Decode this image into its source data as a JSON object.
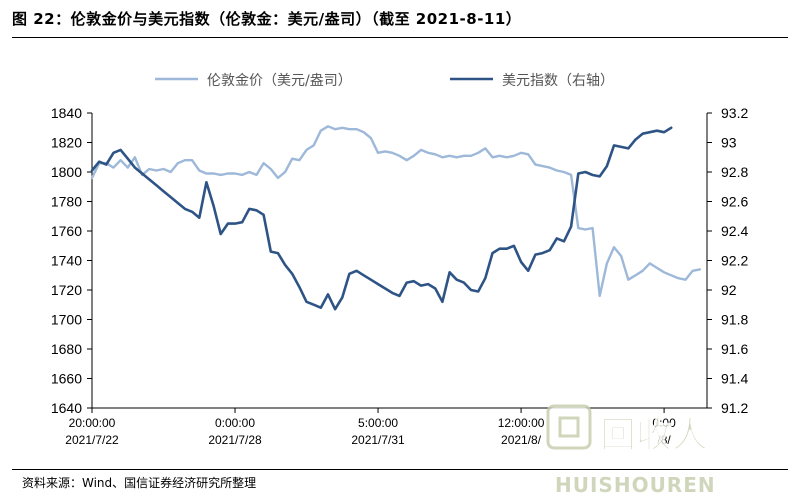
{
  "header": {
    "title": "图 22：伦敦金价与美元指数（伦敦金：美元/盎司）（截至 2021-8-11）"
  },
  "footer": {
    "source": "资料来源：Wind、国信证券经济研究所整理"
  },
  "watermark": {
    "text": "HUISHOUREN",
    "logo_text": "回收人"
  },
  "chart_data": {
    "type": "line",
    "legend": {
      "placement": "top"
    },
    "grid": false,
    "x": {
      "ticks": [
        {
          "time": "20:00:00",
          "date": "2021/7/22",
          "index": 0
        },
        {
          "time": "0:00:00",
          "date": "2021/7/28",
          "index": 20
        },
        {
          "time": "5:00:00",
          "date": "2021/7/31",
          "index": 40
        },
        {
          "time": "12:00:00",
          "date": "2021/8/",
          "index": 60
        },
        {
          "time": "0:00",
          "date": "/8/",
          "index": 80
        }
      ],
      "range": [
        0,
        86
      ]
    },
    "y_left": {
      "min": 1640,
      "max": 1840,
      "step": 20,
      "ticks": [
        "1640",
        "1660",
        "1680",
        "1700",
        "1720",
        "1740",
        "1760",
        "1780",
        "1800",
        "1820",
        "1840"
      ]
    },
    "y_right": {
      "min": 91.2,
      "max": 93.2,
      "step": 0.2,
      "ticks": [
        "91.2",
        "91.4",
        "91.6",
        "91.8",
        "92",
        "92.2",
        "92.4",
        "92.6",
        "92.8",
        "93",
        "93.2"
      ]
    },
    "series": [
      {
        "name": "伦敦金价（美元/盎司）",
        "axis": "left",
        "color": "#9db8d9",
        "values": [
          [
            0,
            1796
          ],
          [
            1,
            1806
          ],
          [
            2,
            1806
          ],
          [
            3,
            1803
          ],
          [
            4,
            1808
          ],
          [
            5,
            1803
          ],
          [
            6,
            1810
          ],
          [
            7,
            1798
          ],
          [
            8,
            1802
          ],
          [
            9,
            1801
          ],
          [
            10,
            1802
          ],
          [
            11,
            1800
          ],
          [
            12,
            1806
          ],
          [
            13,
            1808
          ],
          [
            14,
            1808
          ],
          [
            15,
            1801
          ],
          [
            16,
            1799
          ],
          [
            17,
            1799
          ],
          [
            18,
            1798
          ],
          [
            19,
            1799
          ],
          [
            20,
            1799
          ],
          [
            21,
            1798
          ],
          [
            22,
            1800
          ],
          [
            23,
            1798
          ],
          [
            24,
            1806
          ],
          [
            25,
            1802
          ],
          [
            26,
            1796
          ],
          [
            27,
            1800
          ],
          [
            28,
            1809
          ],
          [
            29,
            1808
          ],
          [
            30,
            1815
          ],
          [
            31,
            1818
          ],
          [
            32,
            1828
          ],
          [
            33,
            1831
          ],
          [
            34,
            1829
          ],
          [
            35,
            1830
          ],
          [
            36,
            1829
          ],
          [
            37,
            1829
          ],
          [
            38,
            1827
          ],
          [
            39,
            1823
          ],
          [
            40,
            1813
          ],
          [
            41,
            1814
          ],
          [
            42,
            1813
          ],
          [
            43,
            1811
          ],
          [
            44,
            1808
          ],
          [
            45,
            1811
          ],
          [
            46,
            1815
          ],
          [
            47,
            1813
          ],
          [
            48,
            1812
          ],
          [
            49,
            1810
          ],
          [
            50,
            1811
          ],
          [
            51,
            1810
          ],
          [
            52,
            1811
          ],
          [
            53,
            1811
          ],
          [
            54,
            1813
          ],
          [
            55,
            1816
          ],
          [
            56,
            1810
          ],
          [
            57,
            1811
          ],
          [
            58,
            1810
          ],
          [
            59,
            1811
          ],
          [
            60,
            1813
          ],
          [
            61,
            1812
          ],
          [
            62,
            1805
          ],
          [
            63,
            1804
          ],
          [
            64,
            1803
          ],
          [
            65,
            1801
          ],
          [
            66,
            1800
          ],
          [
            67,
            1798
          ],
          [
            68,
            1762
          ],
          [
            69,
            1761
          ],
          [
            70,
            1762
          ],
          [
            71,
            1716
          ],
          [
            72,
            1738
          ],
          [
            73,
            1749
          ],
          [
            74,
            1743
          ],
          [
            75,
            1727
          ],
          [
            76,
            1730
          ],
          [
            77,
            1733
          ],
          [
            78,
            1738
          ],
          [
            79,
            1735
          ],
          [
            80,
            1732
          ],
          [
            81,
            1730
          ],
          [
            82,
            1728
          ],
          [
            83,
            1727
          ],
          [
            84,
            1733
          ],
          [
            85,
            1734
          ]
        ]
      },
      {
        "name": "美元指数（右轴）",
        "axis": "right",
        "color": "#2e5486",
        "values": [
          [
            0,
            92.81
          ],
          [
            1,
            92.87
          ],
          [
            2,
            92.85
          ],
          [
            3,
            92.93
          ],
          [
            4,
            92.95
          ],
          [
            5,
            92.89
          ],
          [
            6,
            92.83
          ],
          [
            7,
            92.79
          ],
          [
            8,
            92.75
          ],
          [
            9,
            92.71
          ],
          [
            10,
            92.67
          ],
          [
            11,
            92.63
          ],
          [
            12,
            92.59
          ],
          [
            13,
            92.55
          ],
          [
            14,
            92.53
          ],
          [
            15,
            92.49
          ],
          [
            16,
            92.73
          ],
          [
            17,
            92.57
          ],
          [
            18,
            92.38
          ],
          [
            19,
            92.45
          ],
          [
            20,
            92.45
          ],
          [
            21,
            92.46
          ],
          [
            22,
            92.55
          ],
          [
            23,
            92.54
          ],
          [
            24,
            92.51
          ],
          [
            25,
            92.26
          ],
          [
            26,
            92.25
          ],
          [
            27,
            92.17
          ],
          [
            28,
            92.11
          ],
          [
            29,
            92.02
          ],
          [
            30,
            91.92
          ],
          [
            31,
            91.9
          ],
          [
            32,
            91.88
          ],
          [
            33,
            91.97
          ],
          [
            34,
            91.87
          ],
          [
            35,
            91.95
          ],
          [
            36,
            92.11
          ],
          [
            37,
            92.13
          ],
          [
            38,
            92.1
          ],
          [
            39,
            92.07
          ],
          [
            40,
            92.04
          ],
          [
            41,
            92.01
          ],
          [
            42,
            91.98
          ],
          [
            43,
            91.96
          ],
          [
            44,
            92.05
          ],
          [
            45,
            92.06
          ],
          [
            46,
            92.03
          ],
          [
            47,
            92.04
          ],
          [
            48,
            92.01
          ],
          [
            49,
            91.92
          ],
          [
            50,
            92.12
          ],
          [
            51,
            92.07
          ],
          [
            52,
            92.05
          ],
          [
            53,
            92.0
          ],
          [
            54,
            91.99
          ],
          [
            55,
            92.08
          ],
          [
            56,
            92.25
          ],
          [
            57,
            92.28
          ],
          [
            58,
            92.28
          ],
          [
            59,
            92.3
          ],
          [
            60,
            92.19
          ],
          [
            61,
            92.13
          ],
          [
            62,
            92.24
          ],
          [
            63,
            92.25
          ],
          [
            64,
            92.27
          ],
          [
            65,
            92.35
          ],
          [
            66,
            92.33
          ],
          [
            67,
            92.43
          ],
          [
            68,
            92.79
          ],
          [
            69,
            92.8
          ],
          [
            70,
            92.78
          ],
          [
            71,
            92.77
          ],
          [
            72,
            92.84
          ],
          [
            73,
            92.98
          ],
          [
            74,
            92.97
          ],
          [
            75,
            92.96
          ],
          [
            76,
            93.02
          ],
          [
            77,
            93.06
          ],
          [
            78,
            93.07
          ],
          [
            79,
            93.08
          ],
          [
            80,
            93.07
          ],
          [
            81,
            93.1
          ]
        ]
      }
    ]
  }
}
